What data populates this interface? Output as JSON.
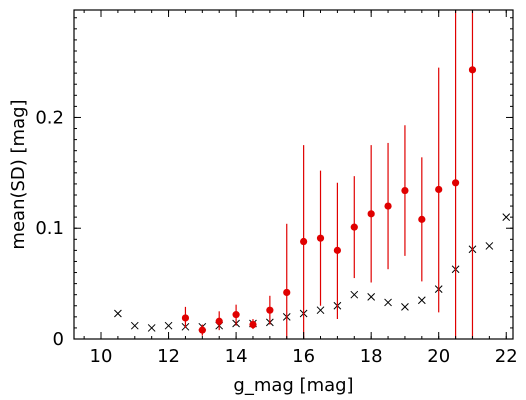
{
  "chart_data": {
    "type": "scatter",
    "xlabel": "g_mag [mag]",
    "ylabel": "mean(SD) [mag]",
    "xlim": [
      9.2,
      22.2
    ],
    "ylim": [
      0,
      0.297
    ],
    "x_ticks": [
      "10",
      "12",
      "14",
      "16",
      "18",
      "20",
      "22"
    ],
    "y_ticks": [
      "0",
      "0.1",
      "0.2"
    ],
    "x_minor_step": 0.5,
    "y_minor_step": 0.01,
    "grid": false,
    "series": [
      {
        "marker": "x",
        "color": "#000000",
        "points": [
          {
            "x": 10.5,
            "y": 0.023
          },
          {
            "x": 11.0,
            "y": 0.012
          },
          {
            "x": 11.5,
            "y": 0.01
          },
          {
            "x": 12.0,
            "y": 0.012
          },
          {
            "x": 12.5,
            "y": 0.011
          },
          {
            "x": 13.0,
            "y": 0.011
          },
          {
            "x": 13.5,
            "y": 0.012
          },
          {
            "x": 14.0,
            "y": 0.014
          },
          {
            "x": 14.5,
            "y": 0.014
          },
          {
            "x": 15.0,
            "y": 0.015
          },
          {
            "x": 15.5,
            "y": 0.02
          },
          {
            "x": 16.0,
            "y": 0.023
          },
          {
            "x": 16.5,
            "y": 0.026
          },
          {
            "x": 17.0,
            "y": 0.03
          },
          {
            "x": 17.5,
            "y": 0.04
          },
          {
            "x": 18.0,
            "y": 0.038
          },
          {
            "x": 18.5,
            "y": 0.033
          },
          {
            "x": 19.0,
            "y": 0.029
          },
          {
            "x": 19.5,
            "y": 0.035
          },
          {
            "x": 20.0,
            "y": 0.045
          },
          {
            "x": 20.5,
            "y": 0.063
          },
          {
            "x": 21.0,
            "y": 0.081
          },
          {
            "x": 21.5,
            "y": 0.084
          },
          {
            "x": 22.0,
            "y": 0.11
          }
        ]
      },
      {
        "marker": "dot-errorbar",
        "color": "#e00000",
        "points": [
          {
            "x": 12.5,
            "y": 0.019,
            "lo": 0.01,
            "hi": 0.029
          },
          {
            "x": 13.0,
            "y": 0.008,
            "lo": 0.003,
            "hi": 0.013
          },
          {
            "x": 13.5,
            "y": 0.016,
            "lo": 0.008,
            "hi": 0.025
          },
          {
            "x": 14.0,
            "y": 0.022,
            "lo": 0.012,
            "hi": 0.031
          },
          {
            "x": 14.5,
            "y": 0.013,
            "lo": 0.009,
            "hi": 0.018
          },
          {
            "x": 15.0,
            "y": 0.026,
            "lo": 0.013,
            "hi": 0.039
          },
          {
            "x": 15.5,
            "y": 0.042,
            "lo": 0.0,
            "hi": 0.104
          },
          {
            "x": 16.0,
            "y": 0.088,
            "lo": 0.0,
            "hi": 0.175
          },
          {
            "x": 16.5,
            "y": 0.091,
            "lo": 0.03,
            "hi": 0.152
          },
          {
            "x": 17.0,
            "y": 0.08,
            "lo": 0.018,
            "hi": 0.141
          },
          {
            "x": 17.5,
            "y": 0.101,
            "lo": 0.055,
            "hi": 0.147
          },
          {
            "x": 18.0,
            "y": 0.113,
            "lo": 0.051,
            "hi": 0.175
          },
          {
            "x": 18.5,
            "y": 0.12,
            "lo": 0.063,
            "hi": 0.177
          },
          {
            "x": 19.0,
            "y": 0.134,
            "lo": 0.075,
            "hi": 0.193
          },
          {
            "x": 19.5,
            "y": 0.108,
            "lo": 0.052,
            "hi": 0.164
          },
          {
            "x": 20.0,
            "y": 0.135,
            "lo": 0.024,
            "hi": 0.245
          },
          {
            "x": 20.5,
            "y": 0.141,
            "lo": 0.0,
            "hi": 0.297
          },
          {
            "x": 21.0,
            "y": 0.243,
            "lo": 0.0,
            "hi": 0.297
          }
        ]
      }
    ]
  }
}
